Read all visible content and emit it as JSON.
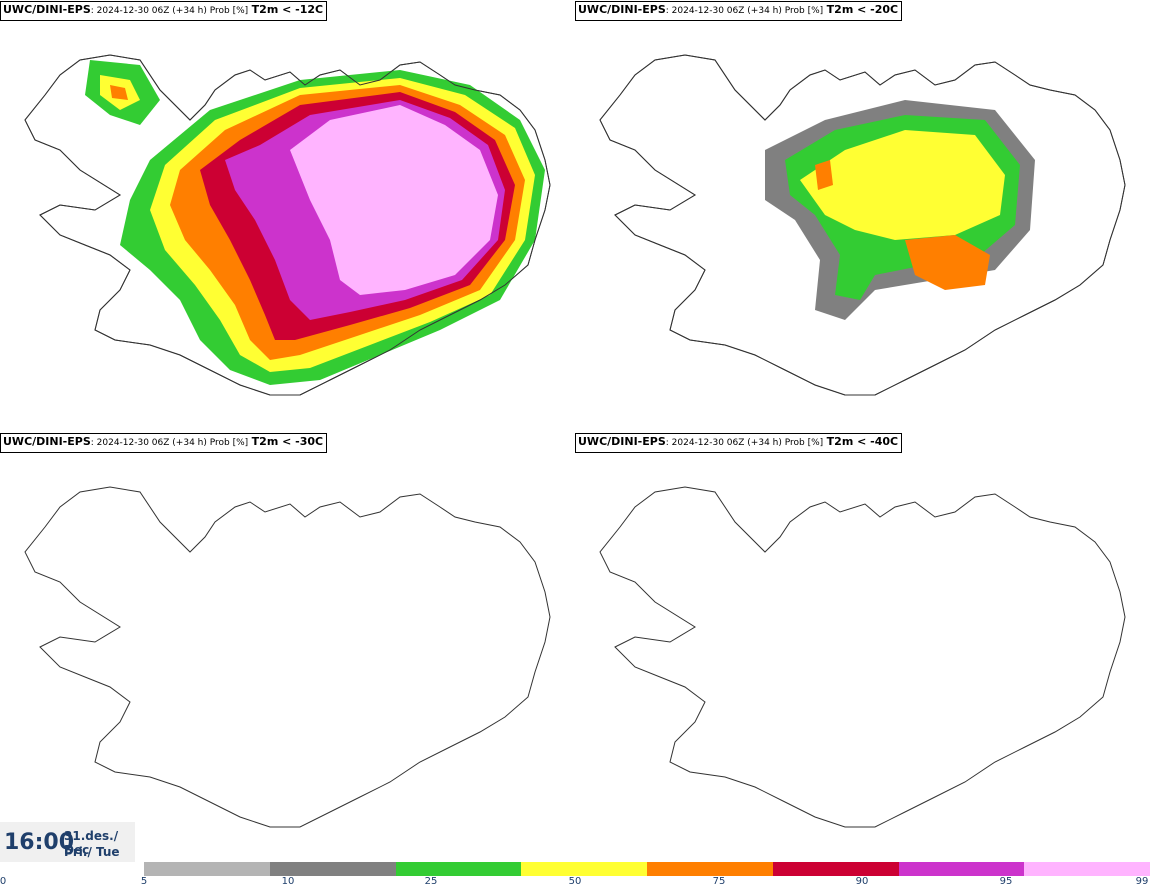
{
  "panels": [
    {
      "model": "UWC/DINI-EPS",
      "info": ": 2024-12-30 06Z (+34 h) Prob [%]",
      "variable": "T2m < -12C"
    },
    {
      "model": "UWC/DINI-EPS",
      "info": ": 2024-12-30 06Z (+34 h) Prob [%]",
      "variable": "T2m < -20C"
    },
    {
      "model": "UWC/DINI-EPS",
      "info": ": 2024-12-30 06Z (+34 h) Prob [%]",
      "variable": "T2m < -30C"
    },
    {
      "model": "UWC/DINI-EPS",
      "info": ": 2024-12-30 06Z (+34 h) Prob [%]",
      "variable": "T2m < -40C"
    }
  ],
  "timebox": {
    "time": "16:00",
    "date_line": "31.des./ Dec",
    "weekday_line": "Þri./ Tue"
  },
  "colorbar": {
    "ticks": [
      "0",
      "5",
      "10",
      "25",
      "50",
      "75",
      "90",
      "95",
      "99"
    ],
    "colors": [
      "#b4b4b4",
      "#808080",
      "#33cc33",
      "#ffff33",
      "#ff7f00",
      "#cc0033",
      "#cc33cc",
      "#ffb4ff"
    ]
  }
}
